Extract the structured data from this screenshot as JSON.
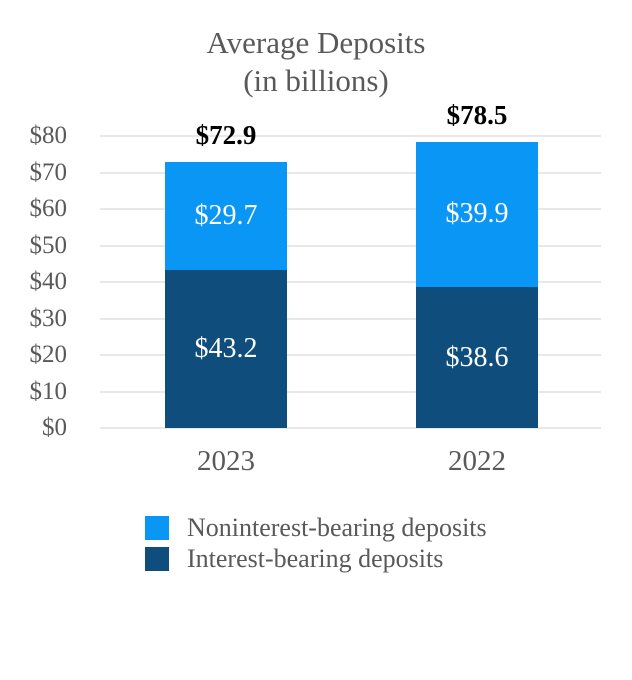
{
  "title": {
    "line1": "Average Deposits",
    "line2": "(in billions)"
  },
  "colors": {
    "background": "#FFFFFF",
    "title_text": "#595959",
    "axis_text": "#595959",
    "total_label_text": "#000000",
    "segment_label_text": "#FFFFFF",
    "gridline": "#E8E8E8",
    "light_blue": "#0A96F5",
    "dark_blue": "#0E4D7C"
  },
  "chart_data": {
    "type": "bar",
    "stacked": true,
    "title": "Average Deposits",
    "subtitle": "(in billions)",
    "categories": [
      "2023",
      "2022"
    ],
    "series": [
      {
        "name": "Interest-bearing deposits",
        "color": "#0E4D7C",
        "values": [
          43.2,
          38.6
        ],
        "data_labels": [
          "$43.2",
          "$38.6"
        ]
      },
      {
        "name": "Noninterest-bearing deposits",
        "color": "#0A96F5",
        "values": [
          29.7,
          39.9
        ],
        "data_labels": [
          "$29.7",
          "$39.9"
        ]
      }
    ],
    "totals": {
      "values": [
        72.9,
        78.5
      ],
      "labels": [
        "$72.9",
        "$78.5"
      ]
    },
    "y_axis": {
      "range": [
        0,
        80
      ],
      "grid": true,
      "ticks": [
        {
          "value": 0,
          "label": "$0"
        },
        {
          "value": 10,
          "label": "$10"
        },
        {
          "value": 20,
          "label": "$20"
        },
        {
          "value": 30,
          "label": "$30"
        },
        {
          "value": 40,
          "label": "$40"
        },
        {
          "value": 50,
          "label": "$50"
        },
        {
          "value": 60,
          "label": "$60"
        },
        {
          "value": 70,
          "label": "$70"
        },
        {
          "value": 80,
          "label": "$80"
        }
      ]
    },
    "legend": {
      "position": "bottom-left",
      "items": [
        {
          "label": "Noninterest-bearing deposits",
          "color": "#0A96F5"
        },
        {
          "label": "Interest-bearing deposits",
          "color": "#0E4D7C"
        }
      ]
    }
  }
}
